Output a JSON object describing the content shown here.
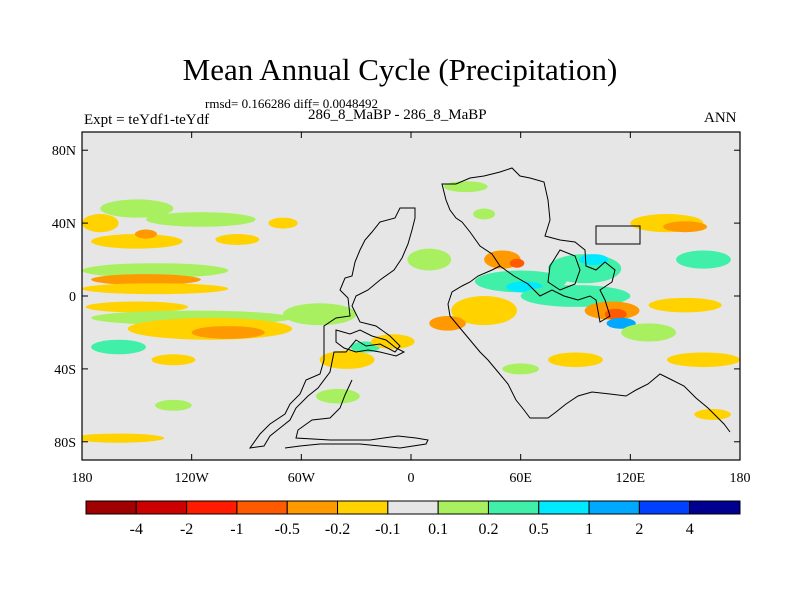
{
  "chart_data": {
    "type": "heatmap",
    "title": "Mean Annual Cycle (Precipitation)",
    "stats": "rmsd= 0.166286 diff= 0.0048492",
    "left_label": "Expt = teYdf1-teYdf",
    "center_label": "286_8_MaBP - 286_8_MaBP",
    "right_label": "ANN",
    "x_ticks": [
      {
        "value": -180,
        "label": "180"
      },
      {
        "value": -120,
        "label": "120W"
      },
      {
        "value": -60,
        "label": "60W"
      },
      {
        "value": 0,
        "label": "0"
      },
      {
        "value": 60,
        "label": "60E"
      },
      {
        "value": 120,
        "label": "120E"
      },
      {
        "value": 180,
        "label": "180"
      }
    ],
    "y_ticks": [
      {
        "value": 80,
        "label": "80N"
      },
      {
        "value": 40,
        "label": "40N"
      },
      {
        "value": 0,
        "label": "0"
      },
      {
        "value": -40,
        "label": "40S"
      },
      {
        "value": -80,
        "label": "80S"
      }
    ],
    "xlim": [
      -180,
      180
    ],
    "ylim": [
      -90,
      90
    ],
    "background_color": "#e6e6e6",
    "colorbar": {
      "levels": [
        "-4",
        "-2",
        "-1",
        "-0.5",
        "-0.2",
        "-0.1",
        "0.1",
        "0.2",
        "0.5",
        "1",
        "2",
        "4"
      ],
      "colors": [
        "#a00000",
        "#cc0000",
        "#ff1a00",
        "#ff5a00",
        "#ff9900",
        "#ffd200",
        "#e6e6e6",
        "#a8f060",
        "#40f0a8",
        "#00eaff",
        "#00a8ff",
        "#0040ff",
        "#000090"
      ]
    },
    "patches": [
      {
        "lon": -150,
        "lat": 30,
        "rx": 25,
        "ry": 4,
        "value": -0.15
      },
      {
        "lon": -145,
        "lat": 34,
        "rx": 6,
        "ry": 2.5,
        "value": -0.3
      },
      {
        "lon": -95,
        "lat": 31,
        "rx": 12,
        "ry": 3,
        "value": -0.15
      },
      {
        "lon": -115,
        "lat": 42,
        "rx": 30,
        "ry": 4,
        "value": 0.15
      },
      {
        "lon": -150,
        "lat": 48,
        "rx": 20,
        "ry": 5,
        "value": 0.15
      },
      {
        "lon": -170,
        "lat": 40,
        "rx": 10,
        "ry": 5,
        "value": -0.15
      },
      {
        "lon": -70,
        "lat": 40,
        "rx": 8,
        "ry": 3,
        "value": -0.15
      },
      {
        "lon": -140,
        "lat": 14,
        "rx": 40,
        "ry": 4,
        "value": 0.15
      },
      {
        "lon": -145,
        "lat": 9,
        "rx": 30,
        "ry": 3,
        "value": -0.3
      },
      {
        "lon": -140,
        "lat": 4,
        "rx": 40,
        "ry": 3,
        "value": -0.15
      },
      {
        "lon": -150,
        "lat": -6,
        "rx": 28,
        "ry": 3,
        "value": -0.15
      },
      {
        "lon": -120,
        "lat": -12,
        "rx": 55,
        "ry": 4,
        "value": 0.15
      },
      {
        "lon": -110,
        "lat": -18,
        "rx": 45,
        "ry": 6,
        "value": -0.15
      },
      {
        "lon": -100,
        "lat": -20,
        "rx": 20,
        "ry": 3.5,
        "value": -0.35
      },
      {
        "lon": -160,
        "lat": -28,
        "rx": 15,
        "ry": 4,
        "value": 0.3
      },
      {
        "lon": -130,
        "lat": -35,
        "rx": 12,
        "ry": 3,
        "value": -0.15
      },
      {
        "lon": -50,
        "lat": -10,
        "rx": 20,
        "ry": 6,
        "value": 0.15
      },
      {
        "lon": -35,
        "lat": -35,
        "rx": 15,
        "ry": 5,
        "value": -0.15
      },
      {
        "lon": -25,
        "lat": -28,
        "rx": 8,
        "ry": 3,
        "value": 0.3
      },
      {
        "lon": -40,
        "lat": -55,
        "rx": 12,
        "ry": 4,
        "value": 0.15
      },
      {
        "lon": -160,
        "lat": -78,
        "rx": 25,
        "ry": 2.5,
        "value": -0.15
      },
      {
        "lon": -130,
        "lat": -60,
        "rx": 10,
        "ry": 3,
        "value": 0.15
      },
      {
        "lon": 10,
        "lat": 20,
        "rx": 12,
        "ry": 6,
        "value": 0.15
      },
      {
        "lon": 30,
        "lat": 60,
        "rx": 12,
        "ry": 3,
        "value": 0.15
      },
      {
        "lon": 40,
        "lat": 45,
        "rx": 6,
        "ry": 3,
        "value": 0.15
      },
      {
        "lon": 60,
        "lat": 8,
        "rx": 25,
        "ry": 6,
        "value": 0.3
      },
      {
        "lon": 62,
        "lat": 5,
        "rx": 10,
        "ry": 3,
        "value": 0.8
      },
      {
        "lon": 40,
        "lat": -8,
        "rx": 18,
        "ry": 8,
        "value": -0.15
      },
      {
        "lon": 20,
        "lat": -15,
        "rx": 10,
        "ry": 4,
        "value": -0.3
      },
      {
        "lon": 50,
        "lat": 20,
        "rx": 10,
        "ry": 5,
        "value": -0.3
      },
      {
        "lon": 58,
        "lat": 18,
        "rx": 4,
        "ry": 2.5,
        "value": -0.7
      },
      {
        "lon": 95,
        "lat": 15,
        "rx": 20,
        "ry": 8,
        "value": 0.3
      },
      {
        "lon": 100,
        "lat": 20,
        "rx": 8,
        "ry": 3,
        "value": 0.8
      },
      {
        "lon": 90,
        "lat": 0,
        "rx": 30,
        "ry": 6,
        "value": 0.3
      },
      {
        "lon": 110,
        "lat": -8,
        "rx": 15,
        "ry": 5,
        "value": -0.4
      },
      {
        "lon": 112,
        "lat": -10,
        "rx": 6,
        "ry": 3,
        "value": -0.8
      },
      {
        "lon": 115,
        "lat": -15,
        "rx": 8,
        "ry": 3,
        "value": 1.5
      },
      {
        "lon": 140,
        "lat": 40,
        "rx": 20,
        "ry": 5,
        "value": -0.15
      },
      {
        "lon": 150,
        "lat": 38,
        "rx": 12,
        "ry": 3,
        "value": -0.35
      },
      {
        "lon": 160,
        "lat": 20,
        "rx": 15,
        "ry": 5,
        "value": 0.3
      },
      {
        "lon": 150,
        "lat": -5,
        "rx": 20,
        "ry": 4,
        "value": -0.15
      },
      {
        "lon": 130,
        "lat": -20,
        "rx": 15,
        "ry": 5,
        "value": 0.15
      },
      {
        "lon": 160,
        "lat": -35,
        "rx": 20,
        "ry": 4,
        "value": -0.15
      },
      {
        "lon": 90,
        "lat": -35,
        "rx": 15,
        "ry": 4,
        "value": -0.15
      },
      {
        "lon": 60,
        "lat": -40,
        "rx": 10,
        "ry": 3,
        "value": 0.15
      },
      {
        "lon": 165,
        "lat": -65,
        "rx": 10,
        "ry": 3,
        "value": -0.15
      },
      {
        "lon": -10,
        "lat": -25,
        "rx": 12,
        "ry": 4,
        "value": -0.15
      }
    ]
  }
}
